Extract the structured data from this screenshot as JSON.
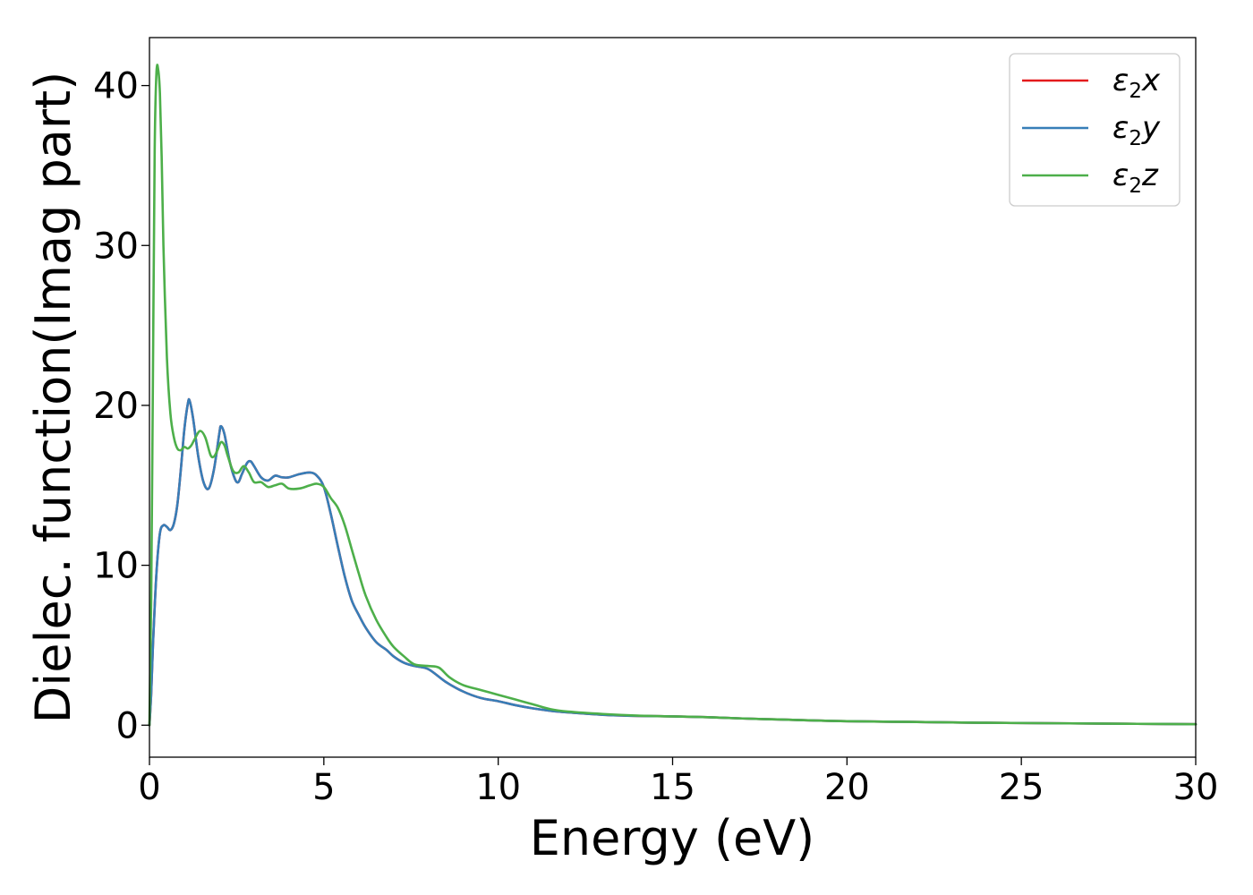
{
  "chart_data": {
    "type": "line",
    "xlabel": "Energy (eV)",
    "ylabel": "Dielec. function(Imag part)",
    "xlim": [
      0,
      30
    ],
    "ylim": [
      -2,
      43
    ],
    "xticks": [
      0,
      5,
      10,
      15,
      20,
      25,
      30
    ],
    "yticks": [
      0,
      10,
      20,
      30,
      40
    ],
    "grid": false,
    "legend_position": "top-right",
    "series": [
      {
        "name": "ε2x",
        "legend_symbol": "ε",
        "legend_subscript": "2",
        "legend_var": "x",
        "color": "#e41a1c",
        "x": [
          0,
          0.05,
          0.1,
          0.2,
          0.3,
          0.4,
          0.5,
          0.6,
          0.7,
          0.8,
          0.9,
          1.0,
          1.1,
          1.15,
          1.25,
          1.4,
          1.55,
          1.7,
          1.85,
          2.0,
          2.05,
          2.15,
          2.3,
          2.45,
          2.55,
          2.65,
          2.8,
          2.9,
          3.0,
          3.2,
          3.4,
          3.6,
          3.8,
          4.0,
          4.3,
          4.6,
          4.8,
          5.0,
          5.2,
          5.4,
          5.6,
          5.8,
          6.0,
          6.2,
          6.5,
          6.8,
          7.0,
          7.3,
          7.6,
          8.0,
          8.5,
          9.0,
          9.5,
          10.0,
          10.5,
          11.0,
          11.5,
          12.0,
          13.0,
          14.0,
          15.0,
          16.0,
          17.0,
          18.0,
          19.0,
          20.0,
          22.0,
          24.0,
          26.0,
          28.0,
          30.0
        ],
        "values": [
          0.0,
          2.0,
          5.0,
          9.5,
          12.0,
          12.5,
          12.4,
          12.2,
          12.6,
          13.8,
          16.0,
          18.5,
          20.1,
          20.3,
          19.2,
          16.8,
          15.2,
          14.8,
          16.0,
          18.2,
          18.7,
          18.2,
          16.5,
          15.4,
          15.2,
          15.7,
          16.4,
          16.5,
          16.2,
          15.5,
          15.3,
          15.6,
          15.5,
          15.5,
          15.7,
          15.8,
          15.6,
          14.9,
          13.2,
          11.2,
          9.3,
          7.8,
          6.9,
          6.1,
          5.2,
          4.7,
          4.3,
          3.9,
          3.7,
          3.5,
          2.7,
          2.1,
          1.7,
          1.5,
          1.25,
          1.05,
          0.9,
          0.8,
          0.65,
          0.58,
          0.55,
          0.5,
          0.42,
          0.36,
          0.3,
          0.25,
          0.2,
          0.15,
          0.12,
          0.09,
          0.06
        ]
      },
      {
        "name": "ε2y",
        "legend_symbol": "ε",
        "legend_subscript": "2",
        "legend_var": "y",
        "color": "#377eb8",
        "x": [
          0,
          0.05,
          0.1,
          0.2,
          0.3,
          0.4,
          0.5,
          0.6,
          0.7,
          0.8,
          0.9,
          1.0,
          1.1,
          1.15,
          1.25,
          1.4,
          1.55,
          1.7,
          1.85,
          2.0,
          2.05,
          2.15,
          2.3,
          2.45,
          2.55,
          2.65,
          2.8,
          2.9,
          3.0,
          3.2,
          3.4,
          3.6,
          3.8,
          4.0,
          4.3,
          4.6,
          4.8,
          5.0,
          5.2,
          5.4,
          5.6,
          5.8,
          6.0,
          6.2,
          6.5,
          6.8,
          7.0,
          7.3,
          7.6,
          8.0,
          8.5,
          9.0,
          9.5,
          10.0,
          10.5,
          11.0,
          11.5,
          12.0,
          13.0,
          14.0,
          15.0,
          16.0,
          17.0,
          18.0,
          19.0,
          20.0,
          22.0,
          24.0,
          26.0,
          28.0,
          30.0
        ],
        "values": [
          0.0,
          2.0,
          5.0,
          9.5,
          12.0,
          12.5,
          12.4,
          12.2,
          12.6,
          13.8,
          16.0,
          18.5,
          20.1,
          20.3,
          19.2,
          16.8,
          15.2,
          14.8,
          16.0,
          18.2,
          18.7,
          18.2,
          16.5,
          15.4,
          15.2,
          15.7,
          16.4,
          16.5,
          16.2,
          15.5,
          15.3,
          15.6,
          15.5,
          15.5,
          15.7,
          15.8,
          15.6,
          14.9,
          13.2,
          11.2,
          9.3,
          7.8,
          6.9,
          6.1,
          5.2,
          4.7,
          4.3,
          3.9,
          3.7,
          3.5,
          2.7,
          2.1,
          1.7,
          1.5,
          1.25,
          1.05,
          0.9,
          0.8,
          0.65,
          0.58,
          0.55,
          0.5,
          0.42,
          0.36,
          0.3,
          0.25,
          0.2,
          0.15,
          0.12,
          0.09,
          0.06
        ]
      },
      {
        "name": "ε2z",
        "legend_symbol": "ε",
        "legend_subscript": "2",
        "legend_var": "z",
        "color": "#4daf4a",
        "x": [
          0,
          0.05,
          0.1,
          0.15,
          0.2,
          0.25,
          0.3,
          0.35,
          0.4,
          0.5,
          0.6,
          0.7,
          0.8,
          0.9,
          1.0,
          1.1,
          1.2,
          1.3,
          1.45,
          1.6,
          1.75,
          1.85,
          1.95,
          2.05,
          2.15,
          2.25,
          2.4,
          2.55,
          2.7,
          2.85,
          3.0,
          3.2,
          3.4,
          3.6,
          3.8,
          4.0,
          4.3,
          4.6,
          4.8,
          5.0,
          5.2,
          5.4,
          5.6,
          5.8,
          6.0,
          6.2,
          6.5,
          6.8,
          7.0,
          7.3,
          7.6,
          8.0,
          8.3,
          8.6,
          9.0,
          9.5,
          10.0,
          10.5,
          11.0,
          11.5,
          12.0,
          13.0,
          14.0,
          15.0,
          16.0,
          17.0,
          18.0,
          19.0,
          20.0,
          22.0,
          24.0,
          26.0,
          28.0,
          30.0
        ],
        "values": [
          0.0,
          8.0,
          22.0,
          36.0,
          40.8,
          41.0,
          39.5,
          35.5,
          30.0,
          23.0,
          19.5,
          18.0,
          17.3,
          17.2,
          17.4,
          17.3,
          17.5,
          17.9,
          18.4,
          18.0,
          16.9,
          16.8,
          17.2,
          17.7,
          17.5,
          16.8,
          15.9,
          15.8,
          16.2,
          15.8,
          15.2,
          15.2,
          14.9,
          15.0,
          15.1,
          14.8,
          14.8,
          15.0,
          15.1,
          14.9,
          14.2,
          13.6,
          12.5,
          11.0,
          9.5,
          8.1,
          6.6,
          5.5,
          4.9,
          4.3,
          3.8,
          3.7,
          3.6,
          3.0,
          2.5,
          2.2,
          1.9,
          1.6,
          1.3,
          1.0,
          0.85,
          0.7,
          0.6,
          0.55,
          0.5,
          0.42,
          0.36,
          0.3,
          0.25,
          0.2,
          0.15,
          0.12,
          0.09,
          0.06
        ]
      }
    ]
  }
}
